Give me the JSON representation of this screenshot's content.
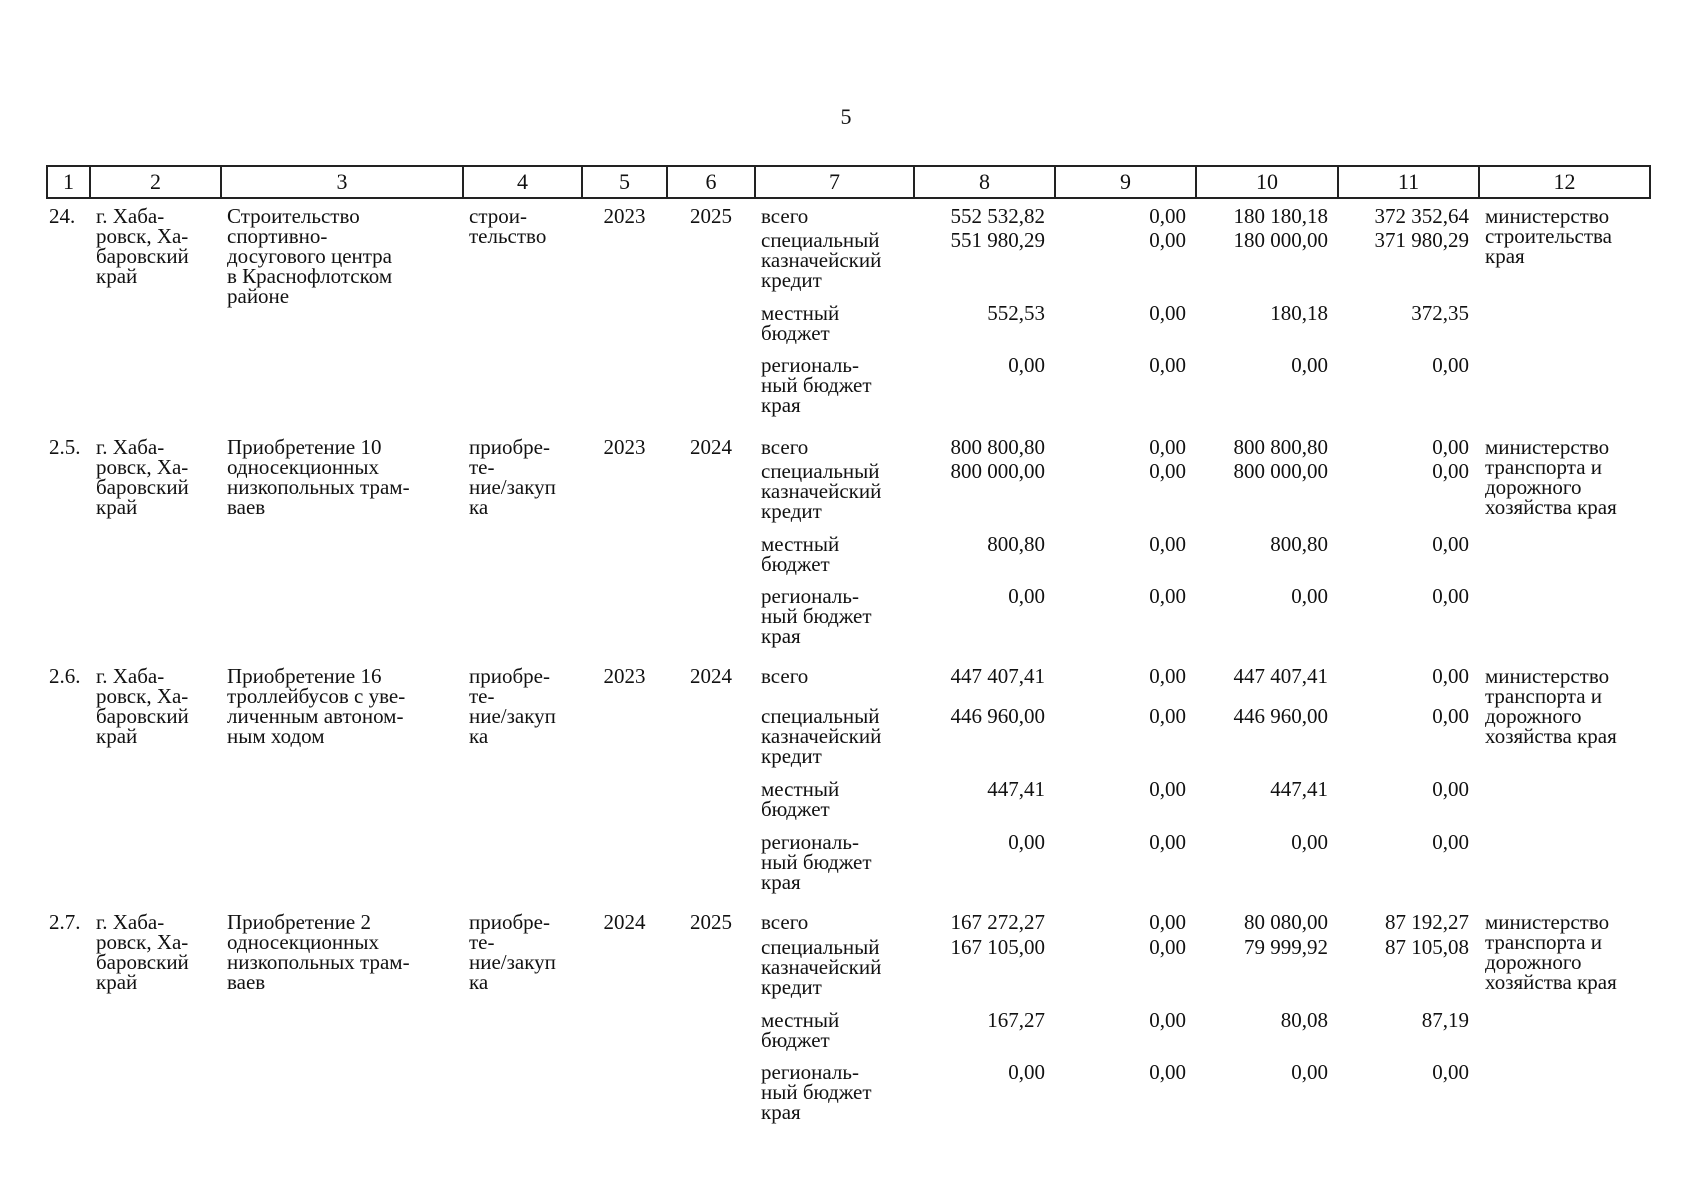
{
  "page_number": "5",
  "table": {
    "header": [
      "1",
      "2",
      "3",
      "4",
      "5",
      "6",
      "7",
      "8",
      "9",
      "10",
      "11",
      "12"
    ],
    "rows": [
      {
        "num": "24.",
        "place": "г. Хаба-\nровск, Ха-\nбаровский\nкрай",
        "name": "Строительство\nспортивно-\nдосугового центра\nв Краснофлотском\nрайоне",
        "kind": "строи-\nтельство",
        "start": "2023",
        "end": "2025",
        "responsible": "министерство\nстроительства\nкрая",
        "funding": [
          {
            "source": "всего",
            "values": [
              "552 532,82",
              "0,00",
              "180 180,18",
              "372 352,64"
            ]
          },
          {
            "source": "специальный\nказначейский\nкредит",
            "values": [
              "551 980,29",
              "0,00",
              "180 000,00",
              "371 980,29"
            ]
          },
          {
            "source": "местный\nбюджет",
            "values": [
              "552,53",
              "0,00",
              "180,18",
              "372,35"
            ]
          },
          {
            "source": "региональ-\nный бюджет\nкрая",
            "values": [
              "0,00",
              "0,00",
              "0,00",
              "0,00"
            ]
          }
        ]
      },
      {
        "num": "2.5.",
        "place": "г. Хаба-\nровск, Ха-\nбаровский\nкрай",
        "name": "Приобретение 10\nодносекционных\nнизкопольных трам-\nваев",
        "kind": "приобре-\nте-\nние/закуп\nка",
        "start": "2023",
        "end": "2024",
        "responsible": "министерство\nтранспорта и\nдорожного\nхозяйства края",
        "funding": [
          {
            "source": "всего",
            "values": [
              "800 800,80",
              "0,00",
              "800 800,80",
              "0,00"
            ]
          },
          {
            "source": "специальный\nказначейский\nкредит",
            "values": [
              "800 000,00",
              "0,00",
              "800 000,00",
              "0,00"
            ]
          },
          {
            "source": "местный\nбюджет",
            "values": [
              "800,80",
              "0,00",
              "800,80",
              "0,00"
            ]
          },
          {
            "source": "региональ-\nный бюджет\nкрая",
            "values": [
              "0,00",
              "0,00",
              "0,00",
              "0,00"
            ]
          }
        ]
      },
      {
        "num": "2.6.",
        "place": "г. Хаба-\nровск, Ха-\nбаровский\nкрай",
        "name": "Приобретение 16\nтроллейбусов с уве-\nличенным автоном-\nным ходом",
        "kind": "приобре-\nте-\nние/закуп\nка",
        "start": "2023",
        "end": "2024",
        "responsible": "министерство\nтранспорта и\nдорожного\nхозяйства края",
        "funding": [
          {
            "source": "всего",
            "values": [
              "447 407,41",
              "0,00",
              "447 407,41",
              "0,00"
            ]
          },
          {
            "source": "специальный\nказначейский\nкредит",
            "values": [
              "446 960,00",
              "0,00",
              "446 960,00",
              "0,00"
            ]
          },
          {
            "source": "местный\nбюджет",
            "values": [
              "447,41",
              "0,00",
              "447,41",
              "0,00"
            ]
          },
          {
            "source": "региональ-\nный бюджет\nкрая",
            "values": [
              "0,00",
              "0,00",
              "0,00",
              "0,00"
            ]
          }
        ]
      },
      {
        "num": "2.7.",
        "place": "г. Хаба-\nровск, Ха-\nбаровский\nкрай",
        "name": "Приобретение 2\nодносекционных\nнизкопольных трам-\nваев",
        "kind": "приобре-\nте-\nние/закуп\nка",
        "start": "2024",
        "end": "2025",
        "responsible": "министерство\nтранспорта и\nдорожного\nхозяйства края",
        "funding": [
          {
            "source": "всего",
            "values": [
              "167 272,27",
              "0,00",
              "80 080,00",
              "87 192,27"
            ]
          },
          {
            "source": "специальный\nказначейский\nкредит",
            "values": [
              "167 105,00",
              "0,00",
              "79 999,92",
              "87 105,08"
            ]
          },
          {
            "source": "местный\nбюджет",
            "values": [
              "167,27",
              "0,00",
              "80,08",
              "87,19"
            ]
          },
          {
            "source": "региональ-\nный бюджет\nкрая",
            "values": [
              "0,00",
              "0,00",
              "0,00",
              "0,00"
            ]
          }
        ]
      }
    ]
  }
}
